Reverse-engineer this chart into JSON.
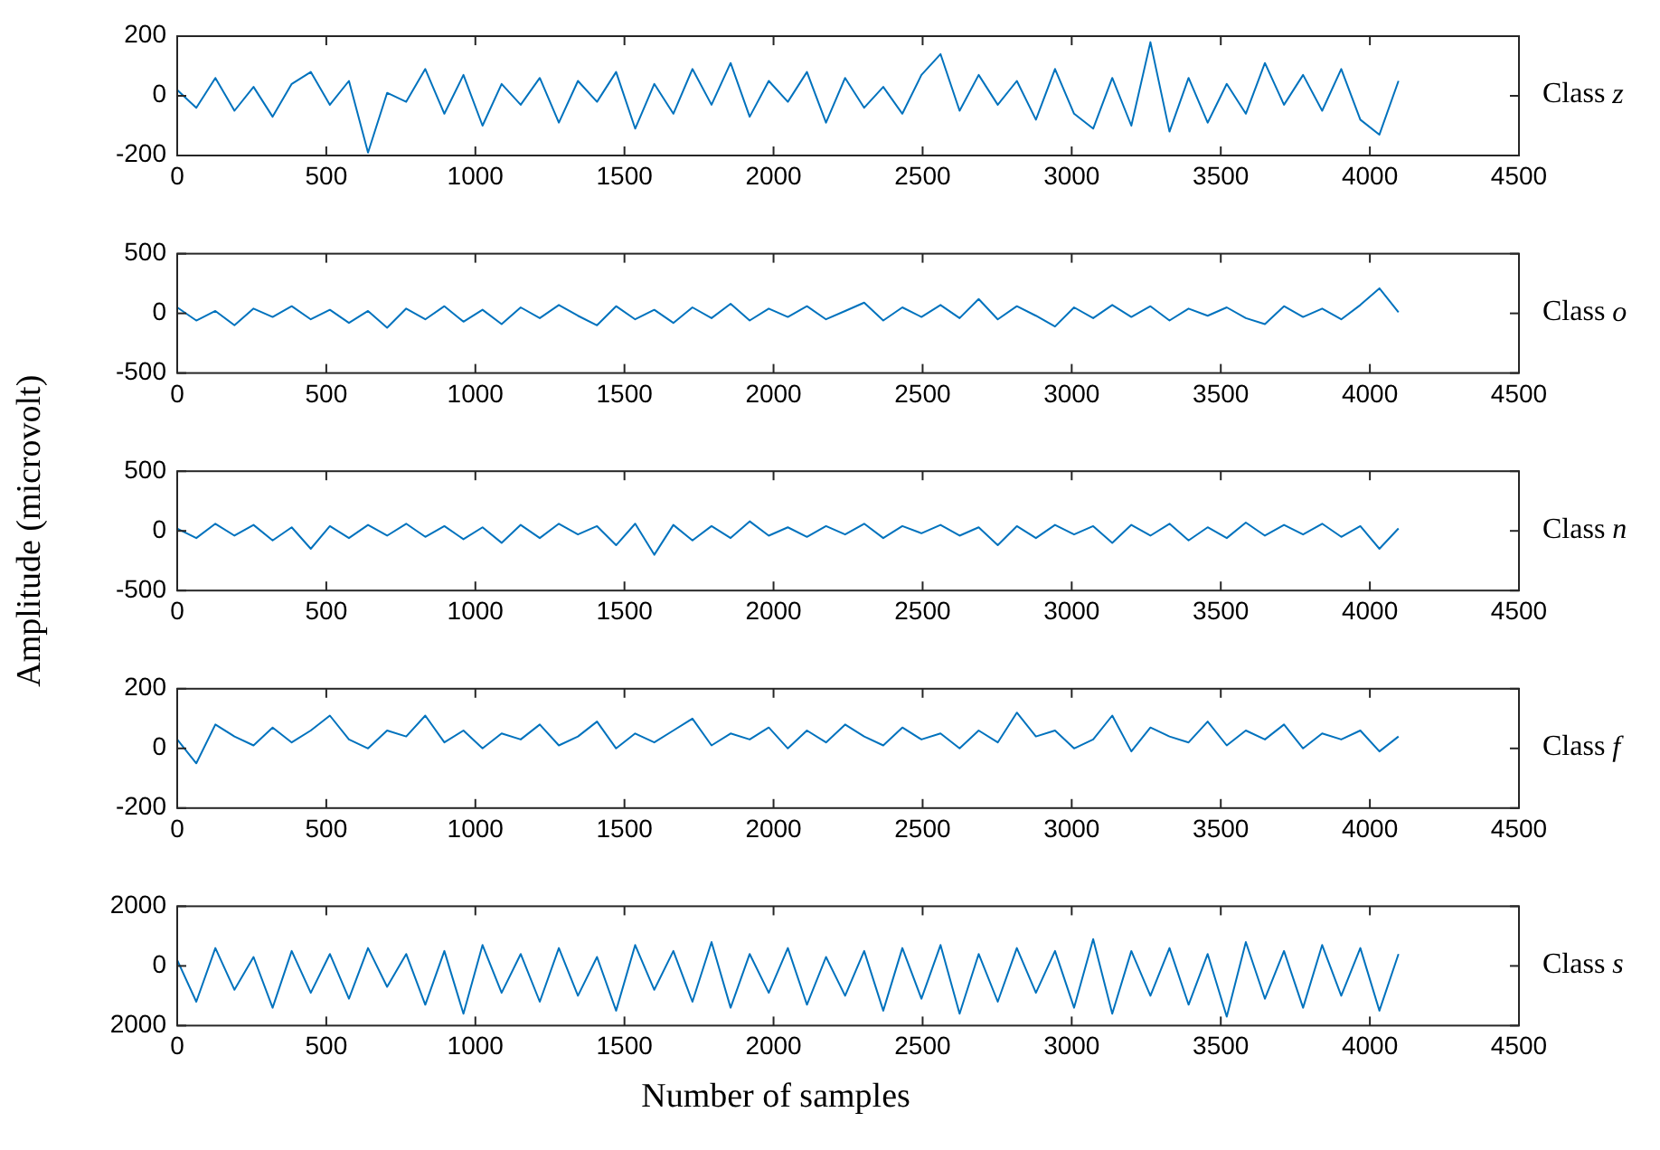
{
  "chart_data": [
    {
      "type": "line",
      "annotations": [
        "Class z"
      ],
      "xlim": [
        0,
        4500
      ],
      "xticks": [
        0,
        500,
        1000,
        1500,
        2000,
        2500,
        3000,
        3500,
        4000,
        4500
      ],
      "ylim": [
        -200,
        200
      ],
      "yticks": [
        -200,
        0,
        200
      ],
      "x": [
        0,
        64,
        128,
        192,
        256,
        320,
        384,
        448,
        512,
        576,
        640,
        704,
        768,
        832,
        896,
        960,
        1024,
        1088,
        1152,
        1216,
        1280,
        1344,
        1408,
        1472,
        1536,
        1600,
        1664,
        1728,
        1792,
        1856,
        1920,
        1984,
        2048,
        2112,
        2176,
        2240,
        2304,
        2368,
        2432,
        2496,
        2560,
        2624,
        2688,
        2752,
        2816,
        2880,
        2944,
        3008,
        3072,
        3136,
        3200,
        3264,
        3328,
        3392,
        3456,
        3520,
        3584,
        3648,
        3712,
        3776,
        3840,
        3904,
        3968,
        4032,
        4096
      ],
      "series": [
        {
          "color": "#0072bd",
          "values": [
            20,
            -40,
            60,
            -50,
            30,
            -70,
            40,
            80,
            -30,
            50,
            -190,
            10,
            -20,
            90,
            -60,
            70,
            -100,
            40,
            -30,
            60,
            -90,
            50,
            -20,
            80,
            -110,
            40,
            -60,
            90,
            -30,
            110,
            -70,
            50,
            -20,
            80,
            -90,
            60,
            -40,
            30,
            -60,
            70,
            140,
            -50,
            70,
            -30,
            50,
            -80,
            90,
            -60,
            -110,
            60,
            -100,
            180,
            -120,
            60,
            -90,
            40,
            -60,
            110,
            -30,
            70,
            -50,
            90,
            -80,
            -130,
            50
          ]
        }
      ]
    },
    {
      "type": "line",
      "annotations": [
        "Class o"
      ],
      "xlim": [
        0,
        4500
      ],
      "xticks": [
        0,
        500,
        1000,
        1500,
        2000,
        2500,
        3000,
        3500,
        4000,
        4500
      ],
      "ylim": [
        -500,
        500
      ],
      "yticks": [
        -500,
        0,
        500
      ],
      "x": [
        0,
        64,
        128,
        192,
        256,
        320,
        384,
        448,
        512,
        576,
        640,
        704,
        768,
        832,
        896,
        960,
        1024,
        1088,
        1152,
        1216,
        1280,
        1344,
        1408,
        1472,
        1536,
        1600,
        1664,
        1728,
        1792,
        1856,
        1920,
        1984,
        2048,
        2112,
        2176,
        2240,
        2304,
        2368,
        2432,
        2496,
        2560,
        2624,
        2688,
        2752,
        2816,
        2880,
        2944,
        3008,
        3072,
        3136,
        3200,
        3264,
        3328,
        3392,
        3456,
        3520,
        3584,
        3648,
        3712,
        3776,
        3840,
        3904,
        3968,
        4032,
        4096
      ],
      "series": [
        {
          "color": "#0072bd",
          "values": [
            50,
            -60,
            20,
            -100,
            40,
            -30,
            60,
            -50,
            30,
            -80,
            20,
            -120,
            40,
            -50,
            60,
            -70,
            30,
            -90,
            50,
            -40,
            70,
            -20,
            -100,
            60,
            -50,
            30,
            -80,
            50,
            -40,
            80,
            -60,
            40,
            -30,
            60,
            -50,
            20,
            90,
            -60,
            50,
            -30,
            70,
            -40,
            120,
            -50,
            60,
            -20,
            -110,
            50,
            -40,
            70,
            -30,
            60,
            -60,
            40,
            -20,
            50,
            -40,
            -90,
            60,
            -30,
            40,
            -50,
            70,
            210,
            10
          ]
        }
      ]
    },
    {
      "type": "line",
      "annotations": [
        "Class n"
      ],
      "ylabel": "Amplitude (microvolt)",
      "xlim": [
        0,
        4500
      ],
      "xticks": [
        0,
        500,
        1000,
        1500,
        2000,
        2500,
        3000,
        3500,
        4000,
        4500
      ],
      "ylim": [
        -500,
        500
      ],
      "yticks": [
        -500,
        0,
        500
      ],
      "x": [
        0,
        64,
        128,
        192,
        256,
        320,
        384,
        448,
        512,
        576,
        640,
        704,
        768,
        832,
        896,
        960,
        1024,
        1088,
        1152,
        1216,
        1280,
        1344,
        1408,
        1472,
        1536,
        1600,
        1664,
        1728,
        1792,
        1856,
        1920,
        1984,
        2048,
        2112,
        2176,
        2240,
        2304,
        2368,
        2432,
        2496,
        2560,
        2624,
        2688,
        2752,
        2816,
        2880,
        2944,
        3008,
        3072,
        3136,
        3200,
        3264,
        3328,
        3392,
        3456,
        3520,
        3584,
        3648,
        3712,
        3776,
        3840,
        3904,
        3968,
        4032,
        4096
      ],
      "series": [
        {
          "color": "#0072bd",
          "values": [
            20,
            -60,
            60,
            -40,
            50,
            -80,
            30,
            -150,
            40,
            -60,
            50,
            -40,
            60,
            -50,
            40,
            -70,
            30,
            -100,
            50,
            -60,
            60,
            -30,
            40,
            -120,
            60,
            -200,
            50,
            -80,
            40,
            -60,
            80,
            -40,
            30,
            -50,
            40,
            -30,
            60,
            -60,
            40,
            -20,
            50,
            -40,
            30,
            -120,
            40,
            -60,
            50,
            -30,
            40,
            -100,
            50,
            -40,
            60,
            -80,
            30,
            -60,
            70,
            -40,
            50,
            -30,
            60,
            -50,
            40,
            -150,
            20
          ]
        }
      ]
    },
    {
      "type": "line",
      "annotations": [
        "Class f"
      ],
      "xlim": [
        0,
        4500
      ],
      "xticks": [
        0,
        500,
        1000,
        1500,
        2000,
        2500,
        3000,
        3500,
        4000,
        4500
      ],
      "ylim": [
        -200,
        200
      ],
      "yticks": [
        -200,
        0,
        200
      ],
      "x": [
        0,
        64,
        128,
        192,
        256,
        320,
        384,
        448,
        512,
        576,
        640,
        704,
        768,
        832,
        896,
        960,
        1024,
        1088,
        1152,
        1216,
        1280,
        1344,
        1408,
        1472,
        1536,
        1600,
        1664,
        1728,
        1792,
        1856,
        1920,
        1984,
        2048,
        2112,
        2176,
        2240,
        2304,
        2368,
        2432,
        2496,
        2560,
        2624,
        2688,
        2752,
        2816,
        2880,
        2944,
        3008,
        3072,
        3136,
        3200,
        3264,
        3328,
        3392,
        3456,
        3520,
        3584,
        3648,
        3712,
        3776,
        3840,
        3904,
        3968,
        4032,
        4096
      ],
      "series": [
        {
          "color": "#0072bd",
          "values": [
            30,
            -50,
            80,
            40,
            10,
            70,
            20,
            60,
            110,
            30,
            0,
            60,
            40,
            110,
            20,
            60,
            0,
            50,
            30,
            80,
            10,
            40,
            90,
            0,
            50,
            20,
            60,
            100,
            10,
            50,
            30,
            70,
            0,
            60,
            20,
            80,
            40,
            10,
            70,
            30,
            50,
            0,
            60,
            20,
            120,
            40,
            60,
            0,
            30,
            110,
            -10,
            70,
            40,
            20,
            90,
            10,
            60,
            30,
            80,
            0,
            50,
            30,
            60,
            -10,
            40
          ]
        }
      ]
    },
    {
      "type": "line",
      "annotations": [
        "Class s"
      ],
      "xlabel": "Number of samples",
      "xlim": [
        0,
        4500
      ],
      "xticks": [
        0,
        500,
        1000,
        1500,
        2000,
        2500,
        3000,
        3500,
        4000,
        4500
      ],
      "ylim": [
        -2000,
        2000
      ],
      "yticks": [
        {
          "value": -2000,
          "label": "2000"
        },
        0,
        2000
      ],
      "x": [
        0,
        64,
        128,
        192,
        256,
        320,
        384,
        448,
        512,
        576,
        640,
        704,
        768,
        832,
        896,
        960,
        1024,
        1088,
        1152,
        1216,
        1280,
        1344,
        1408,
        1472,
        1536,
        1600,
        1664,
        1728,
        1792,
        1856,
        1920,
        1984,
        2048,
        2112,
        2176,
        2240,
        2304,
        2368,
        2432,
        2496,
        2560,
        2624,
        2688,
        2752,
        2816,
        2880,
        2944,
        3008,
        3072,
        3136,
        3200,
        3264,
        3328,
        3392,
        3456,
        3520,
        3584,
        3648,
        3712,
        3776,
        3840,
        3904,
        3968,
        4032,
        4096
      ],
      "series": [
        {
          "color": "#0072bd",
          "values": [
            200,
            -1200,
            600,
            -800,
            300,
            -1400,
            500,
            -900,
            400,
            -1100,
            600,
            -700,
            400,
            -1300,
            500,
            -1600,
            700,
            -900,
            400,
            -1200,
            600,
            -1000,
            300,
            -1500,
            700,
            -800,
            500,
            -1200,
            800,
            -1400,
            400,
            -900,
            600,
            -1300,
            300,
            -1000,
            500,
            -1500,
            600,
            -1100,
            700,
            -1600,
            400,
            -1200,
            600,
            -900,
            500,
            -1400,
            900,
            -1600,
            500,
            -1000,
            600,
            -1300,
            400,
            -1700,
            800,
            -1100,
            500,
            -1400,
            700,
            -1000,
            600,
            -1500,
            400
          ]
        }
      ]
    }
  ]
}
